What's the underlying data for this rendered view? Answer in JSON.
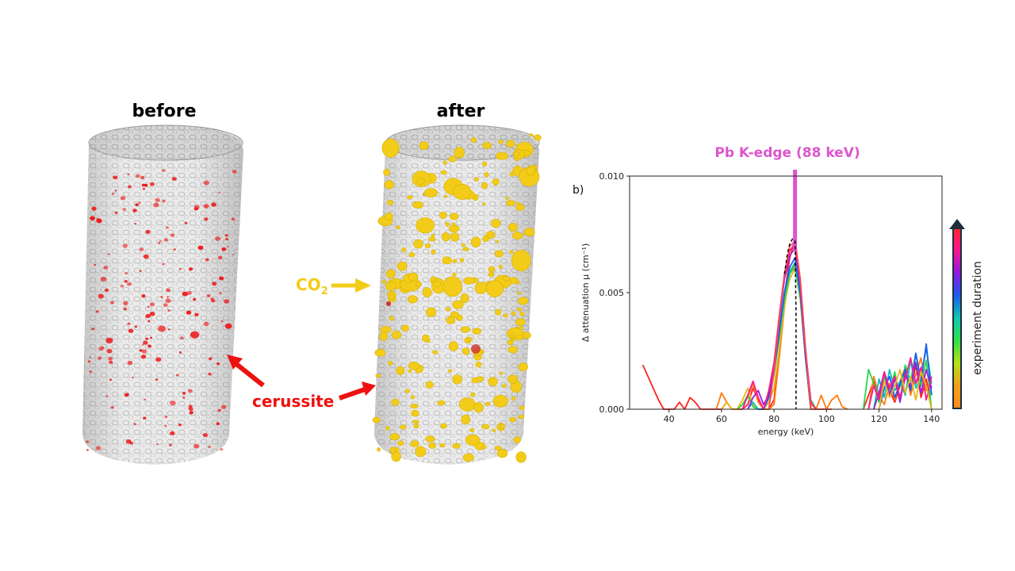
{
  "panels": {
    "before_title": "before",
    "after_title": "after"
  },
  "callouts": {
    "co2_main": "CO",
    "co2_sub": "2",
    "cerussite": "cerussite"
  },
  "colors": {
    "co2": "#f2cc18",
    "cerussite": "#ee1111",
    "pb_edge": "#dd55cc"
  },
  "chart": {
    "panel_label": "b)",
    "pb_edge_label": "Pb K-edge (88 keV)",
    "colorbar_label": "experiment duration"
  },
  "chart_data": {
    "type": "line",
    "xlabel": "energy (keV)",
    "ylabel": "Δ attenuation μ (cm⁻¹)",
    "xlim": [
      25,
      144
    ],
    "ylim": [
      0,
      0.01
    ],
    "xticks": [
      40,
      60,
      80,
      100,
      120,
      140
    ],
    "yticks": [
      0.0,
      0.005,
      0.01
    ],
    "ytick_labels": [
      "0.000",
      "0.005",
      "0.010"
    ],
    "k_edge_keV": 88,
    "colorbar": [
      "#ff8c1a",
      "#f0a018",
      "#b8e015",
      "#2ee04a",
      "#10c8b0",
      "#1c5cf0",
      "#9018e0",
      "#ff1490",
      "#ff2a2a"
    ],
    "series": [
      {
        "color": "#ff2222",
        "x": [
          30,
          32,
          34,
          36,
          38,
          40,
          42,
          44,
          46,
          48,
          50,
          52,
          54,
          56,
          58,
          60,
          62,
          64,
          66,
          68,
          70,
          72,
          74,
          76,
          78,
          80,
          82,
          84,
          86,
          88,
          90,
          92,
          94,
          96,
          98,
          100,
          102
        ],
        "y": [
          0.0019,
          0.0014,
          0.0009,
          0.0004,
          0.0,
          0.0,
          0.0,
          0.0003,
          0.0,
          0.0005,
          0.0003,
          0.0,
          0.0,
          0.0,
          0.0,
          0.0,
          0.0003,
          0.0,
          0.0,
          0.0,
          0.0002,
          0.0009,
          0.0004,
          0.0,
          0.0,
          0.0004,
          0.0025,
          0.0049,
          0.0065,
          0.0073,
          0.0055,
          0.0025,
          0.0,
          0.0,
          0.0,
          0.0,
          0.0
        ]
      },
      {
        "color": "#ff7a10",
        "x": [
          58,
          60,
          62,
          64,
          66,
          68,
          70,
          72,
          74,
          76,
          78,
          80,
          82,
          84,
          86,
          88,
          90,
          92,
          94,
          96,
          98,
          100,
          102,
          104,
          106,
          108
        ],
        "y": [
          0.0,
          0.0007,
          0.0003,
          0.0,
          0.0,
          0.0002,
          0.0005,
          0.0011,
          0.0003,
          0.0,
          0.0,
          0.0002,
          0.0022,
          0.0044,
          0.0058,
          0.0062,
          0.0048,
          0.0022,
          0.0,
          0.0,
          0.0006,
          0.0,
          0.0004,
          0.0006,
          0.0001,
          0.0
        ]
      },
      {
        "color": "#e6b81a",
        "x": [
          60,
          62,
          64,
          66,
          68,
          70,
          72,
          74,
          76,
          78,
          80,
          82,
          84,
          86,
          88,
          90,
          92,
          94,
          96
        ],
        "y": [
          0.0,
          0.0003,
          0.0,
          0.0,
          0.0004,
          0.0009,
          0.0002,
          0.0,
          0.0,
          0.0003,
          0.0009,
          0.0026,
          0.0045,
          0.0056,
          0.006,
          0.0047,
          0.0022,
          0.0002,
          0.0
        ]
      },
      {
        "color": "#26d84a",
        "x": [
          66,
          68,
          70,
          72,
          74,
          76,
          78,
          80,
          82,
          84,
          86,
          88,
          90,
          92,
          94,
          96
        ],
        "y": [
          0.0,
          0.0002,
          0.0006,
          0.0001,
          0.0,
          0.0,
          0.0005,
          0.0015,
          0.0031,
          0.0047,
          0.0058,
          0.0061,
          0.0048,
          0.0025,
          0.0004,
          0.0
        ]
      },
      {
        "color": "#10c0b8",
        "x": [
          70,
          72,
          74,
          76,
          78,
          80,
          82,
          84,
          86,
          88,
          90,
          92,
          94
        ],
        "y": [
          0.0,
          0.0003,
          0.0,
          0.0,
          0.0006,
          0.0018,
          0.0034,
          0.005,
          0.0059,
          0.0063,
          0.0049,
          0.0024,
          0.0
        ]
      },
      {
        "color": "#1c5ef0",
        "x": [
          74,
          76,
          78,
          80,
          82,
          84,
          86,
          88,
          90,
          92,
          94
        ],
        "y": [
          0.0,
          0.0,
          0.0005,
          0.0016,
          0.0033,
          0.005,
          0.0061,
          0.0065,
          0.005,
          0.0022,
          0.0
        ]
      },
      {
        "color": "#9a1ee0",
        "x": [
          70,
          72,
          74,
          76,
          78,
          80,
          82,
          84,
          86,
          88,
          90,
          92,
          94
        ],
        "y": [
          0.0,
          0.0005,
          0.0008,
          0.0002,
          0.0006,
          0.0019,
          0.0038,
          0.0056,
          0.0066,
          0.0069,
          0.0053,
          0.0025,
          0.0
        ]
      },
      {
        "color": "#ff1a8c",
        "x": [
          68,
          70,
          72,
          74,
          76,
          78,
          80,
          82,
          84,
          86,
          88,
          90,
          92,
          94,
          96
        ],
        "y": [
          0.0,
          0.0006,
          0.0012,
          0.0005,
          0.0,
          0.0008,
          0.002,
          0.004,
          0.0058,
          0.0068,
          0.0071,
          0.0055,
          0.0026,
          0.0003,
          0.0
        ]
      },
      {
        "color": "#ff4a4a",
        "x": [
          78,
          80,
          82,
          84,
          86,
          88,
          90,
          92,
          94
        ],
        "y": [
          0.0,
          0.0016,
          0.0039,
          0.0058,
          0.007,
          0.0072,
          0.0056,
          0.0026,
          0.0
        ]
      },
      {
        "color": "#ff2222",
        "x": [
          114,
          116,
          118,
          120,
          122,
          124,
          126,
          128,
          130,
          132,
          134,
          136,
          138,
          140
        ],
        "y": [
          0.0,
          0.0006,
          0.0012,
          0.0004,
          0.0015,
          0.0008,
          0.0003,
          0.001,
          0.0016,
          0.0007,
          0.0019,
          0.0005,
          0.0013,
          0.0
        ]
      },
      {
        "color": "#ff7a10",
        "x": [
          116,
          118,
          120,
          122,
          124,
          126,
          128,
          130,
          132,
          134,
          136,
          138,
          140
        ],
        "y": [
          0.0,
          0.0014,
          0.0006,
          0.0002,
          0.0011,
          0.0004,
          0.0012,
          0.0018,
          0.0006,
          0.0015,
          0.0022,
          0.0008,
          0.0012
        ]
      },
      {
        "color": "#26d84a",
        "x": [
          114,
          116,
          118,
          120,
          122,
          124,
          126,
          128,
          130,
          132,
          134,
          136,
          138,
          140
        ],
        "y": [
          0.0,
          0.0017,
          0.0011,
          0.0003,
          0.0014,
          0.0007,
          0.0016,
          0.0004,
          0.0019,
          0.0012,
          0.0024,
          0.001,
          0.0021,
          0.0
        ]
      },
      {
        "color": "#10c0b8",
        "x": [
          118,
          120,
          122,
          124,
          126,
          128,
          130,
          132,
          134,
          136,
          138,
          140
        ],
        "y": [
          0.0,
          0.0013,
          0.0005,
          0.0017,
          0.0008,
          0.0012,
          0.0006,
          0.0021,
          0.0009,
          0.0014,
          0.0026,
          0.0011
        ]
      },
      {
        "color": "#1c5ef0",
        "x": [
          120,
          122,
          124,
          126,
          128,
          130,
          132,
          134,
          136,
          138,
          140
        ],
        "y": [
          0.0,
          0.0009,
          0.0014,
          0.0005,
          0.0011,
          0.0017,
          0.0008,
          0.0024,
          0.0012,
          0.0028,
          0.0006
        ]
      },
      {
        "color": "#9a1ee0",
        "x": [
          118,
          120,
          122,
          124,
          126,
          128,
          130,
          132,
          134,
          136,
          138,
          140
        ],
        "y": [
          0.0,
          0.0007,
          0.0016,
          0.0006,
          0.0013,
          0.0003,
          0.0015,
          0.001,
          0.002,
          0.0007,
          0.0017,
          0.0009
        ]
      },
      {
        "color": "#ff1a8c",
        "x": [
          116,
          118,
          120,
          122,
          124,
          126,
          128,
          130,
          132,
          134,
          136,
          138,
          140
        ],
        "y": [
          0.0,
          0.001,
          0.0004,
          0.0016,
          0.0009,
          0.0014,
          0.0005,
          0.0013,
          0.0022,
          0.0011,
          0.0018,
          0.0004,
          0.0014
        ]
      },
      {
        "color": "#e6b81a",
        "x": [
          120,
          122,
          124,
          126,
          128,
          130,
          132,
          134,
          136,
          138,
          140
        ],
        "y": [
          0.0,
          0.0012,
          0.0005,
          0.001,
          0.0017,
          0.0007,
          0.0014,
          0.0004,
          0.0016,
          0.001,
          0.0
        ]
      }
    ]
  }
}
